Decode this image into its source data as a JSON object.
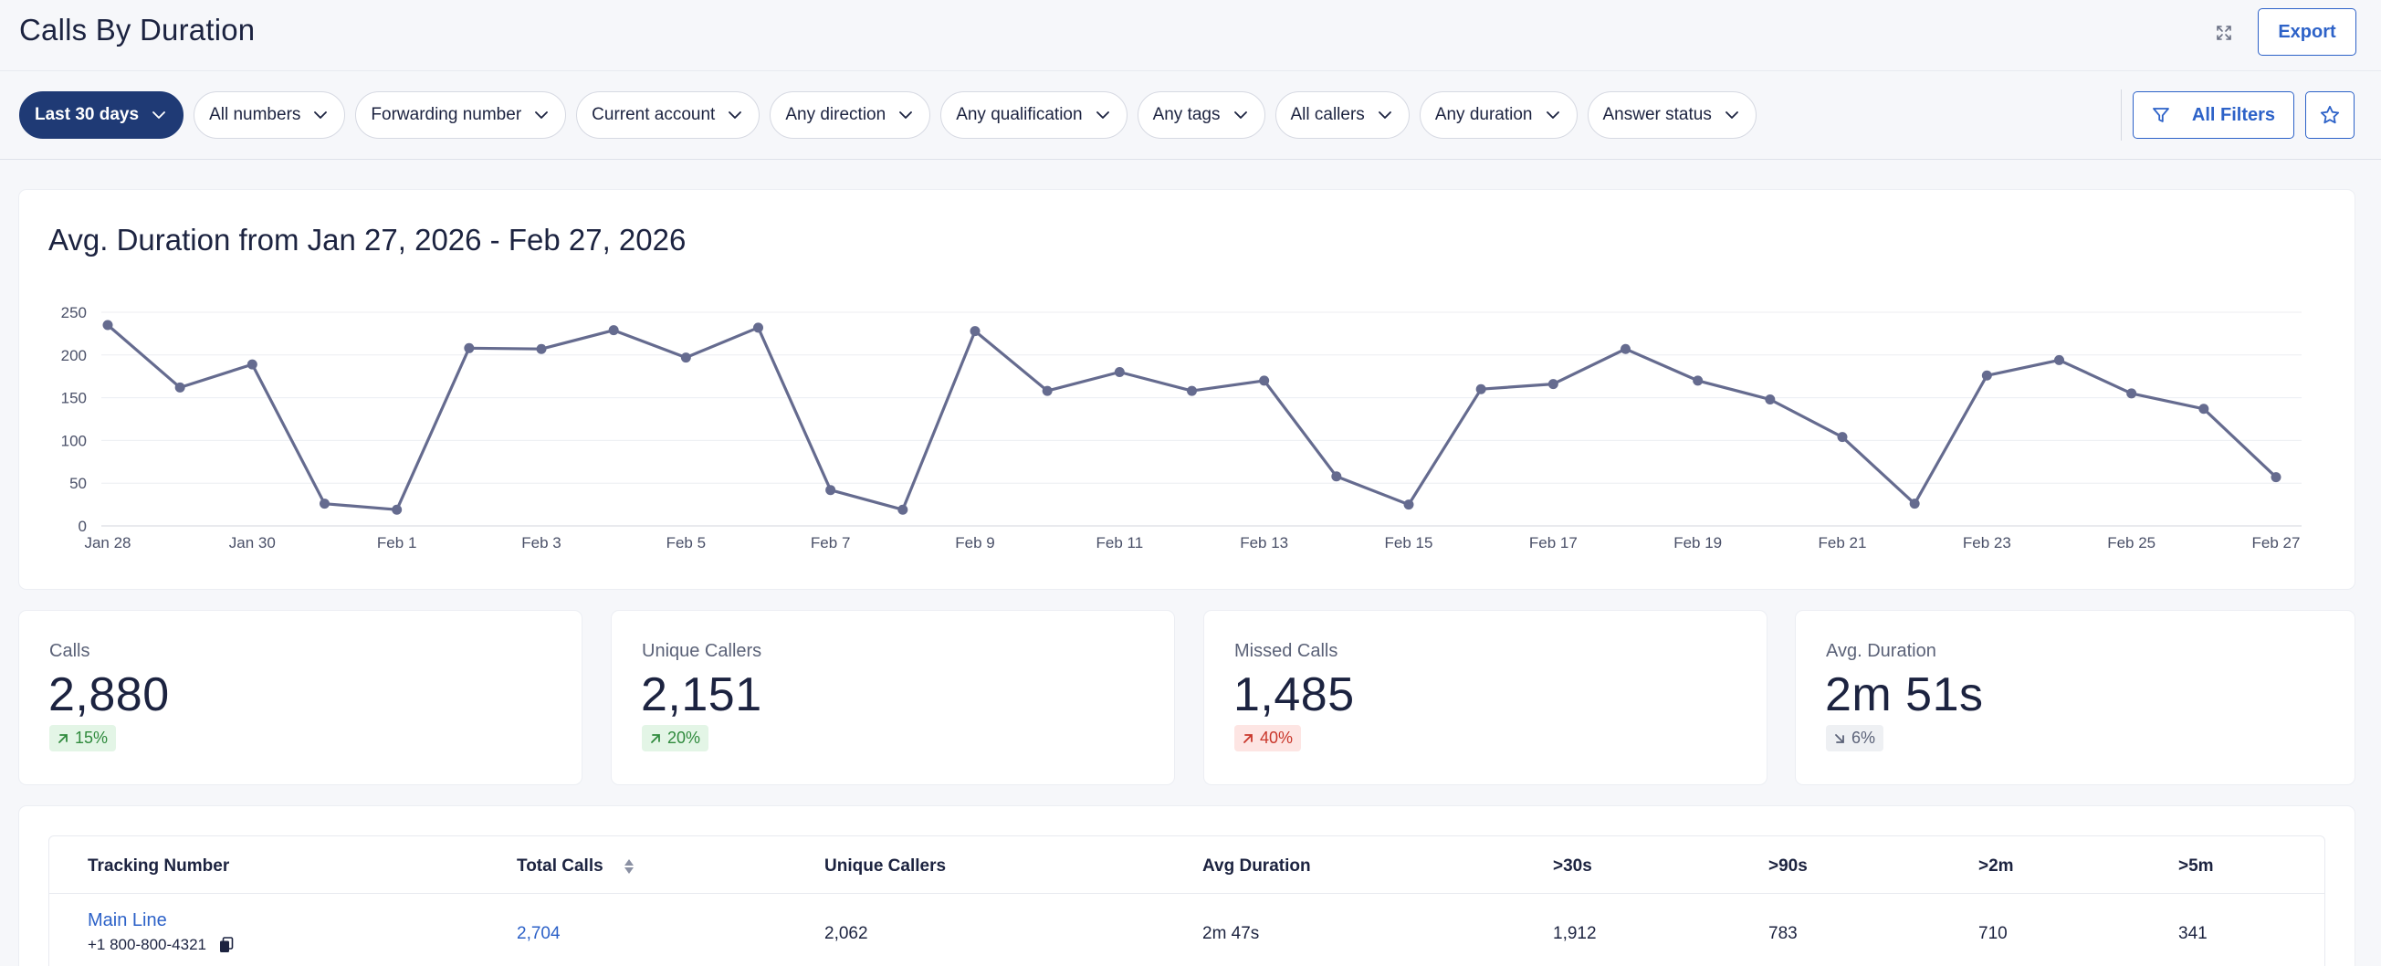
{
  "header": {
    "title": "Calls By Duration",
    "export_label": "Export"
  },
  "filters": {
    "pills": [
      {
        "label": "Last 30 days",
        "active": true
      },
      {
        "label": "All numbers"
      },
      {
        "label": "Forwarding number"
      },
      {
        "label": "Current account"
      },
      {
        "label": "Any direction"
      },
      {
        "label": "Any qualification"
      },
      {
        "label": "Any tags"
      },
      {
        "label": "All callers"
      },
      {
        "label": "Any duration"
      },
      {
        "label": "Answer status"
      }
    ],
    "all_filters_label": "All Filters"
  },
  "colors": {
    "primary": "#1f3a75",
    "accent": "#2d62c8",
    "line": "#656b8f",
    "positive": "#2f8a3d",
    "negative": "#c9362a"
  },
  "chart_data": {
    "type": "line",
    "title": "Avg. Duration from Jan 27, 2026 - Feb 27, 2026",
    "xlabel": "",
    "ylabel": "",
    "ylim": [
      0,
      250
    ],
    "yticks": [
      0,
      50,
      100,
      150,
      200,
      250
    ],
    "x": [
      "Jan 28",
      "Jan 29",
      "Jan 30",
      "Jan 31",
      "Feb 1",
      "Feb 2",
      "Feb 3",
      "Feb 4",
      "Feb 5",
      "Feb 6",
      "Feb 7",
      "Feb 8",
      "Feb 9",
      "Feb 10",
      "Feb 11",
      "Feb 12",
      "Feb 13",
      "Feb 14",
      "Feb 15",
      "Feb 16",
      "Feb 17",
      "Feb 18",
      "Feb 19",
      "Feb 20",
      "Feb 21",
      "Feb 22",
      "Feb 23",
      "Feb 24",
      "Feb 25",
      "Feb 26",
      "Feb 27"
    ],
    "xtick_labels": [
      "Jan 28",
      "Jan 30",
      "Feb 1",
      "Feb 3",
      "Feb 5",
      "Feb 7",
      "Feb 9",
      "Feb 11",
      "Feb 13",
      "Feb 15",
      "Feb 17",
      "Feb 19",
      "Feb 21",
      "Feb 23",
      "Feb 25",
      "Feb 27"
    ],
    "series": [
      {
        "values": [
          235,
          162,
          189,
          26,
          19,
          208,
          207,
          229,
          197,
          232,
          42,
          19,
          228,
          158,
          180,
          158,
          170,
          58,
          25,
          160,
          166,
          207,
          170,
          148,
          104,
          26,
          176,
          194,
          155,
          137,
          57
        ]
      }
    ],
    "grid": true,
    "legend": "none"
  },
  "stats": [
    {
      "label": "Calls",
      "value": "2,880",
      "change": "15%",
      "direction": "up",
      "tone": "green"
    },
    {
      "label": "Unique Callers",
      "value": "2,151",
      "change": "20%",
      "direction": "up",
      "tone": "green"
    },
    {
      "label": "Missed Calls",
      "value": "1,485",
      "change": "40%",
      "direction": "up",
      "tone": "red"
    },
    {
      "label": "Avg. Duration",
      "value": "2m 51s",
      "change": "6%",
      "direction": "down",
      "tone": "gray"
    }
  ],
  "table": {
    "headers": [
      "Tracking Number",
      "Total Calls",
      "Unique Callers",
      "Avg Duration",
      ">30s",
      ">90s",
      ">2m",
      ">5m"
    ],
    "rows": [
      {
        "name": "Main Line",
        "number": "+1 800-800-4321",
        "total_calls": "2,704",
        "unique_callers": "2,062",
        "avg_duration": "2m 47s",
        "gt30s": "1,912",
        "gt90s": "783",
        "gt2m": "710",
        "gt5m": "341"
      }
    ]
  }
}
